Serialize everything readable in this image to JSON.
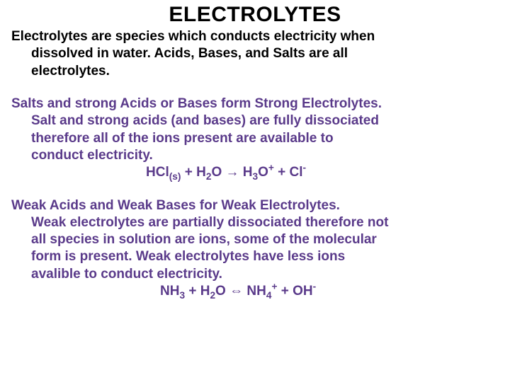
{
  "colors": {
    "background": "#ffffff",
    "title": "#000000",
    "intro_text": "#000000",
    "body_text": "#5a3a8a"
  },
  "typography": {
    "title_fontsize": 30,
    "body_fontsize": 19,
    "font_family": "Arial",
    "font_weight": 700,
    "line_height": 1.28
  },
  "title": "ELECTROLYTES",
  "intro": {
    "line1": "Electrolytes are species which conducts electricity when",
    "line2": "dissolved in water.   Acids, Bases, and Salts are all",
    "line3": "electrolytes."
  },
  "section_strong": {
    "line1": "Salts and strong Acids or Bases form Strong  Electrolytes.",
    "line2": "Salt and strong acids (and bases) are fully dissociated",
    "line3": "therefore all of the ions present are available to",
    "line4": "conduct electricity."
  },
  "equation_strong": {
    "lhs1": "HCl",
    "lhs1_sub": "(s)",
    "plus1": " + H",
    "h2o_sub": "2",
    "h2o_tail": "O ",
    "arrow": "→",
    "rhs1": "  H",
    "h3o_sub": "3",
    "h3o_tail": "O",
    "h3o_sup": "+",
    "mid": "   +   Cl",
    "cl_sup": "-"
  },
  "section_weak": {
    "line1": "Weak Acids and Weak Bases for Weak Electrolytes.",
    "line2": "Weak electrolytes are partially dissociated therefore not",
    "line3": "all species in solution are ions, some of the molecular",
    "line4": "form is present.   Weak electrolytes have less ions",
    "line5": "avalible to conduct electricity."
  },
  "equation_weak": {
    "lhs1": "NH",
    "nh3_sub": "3",
    "plus1": "  +  H",
    "h2o_sub": "2",
    "h2o_tail": "O  ",
    "arrow": "⇔",
    "rhs1": "  NH",
    "nh4_sub": "4",
    "nh4_sup": "+",
    "mid": "  +  OH",
    "oh_sup": "-"
  }
}
